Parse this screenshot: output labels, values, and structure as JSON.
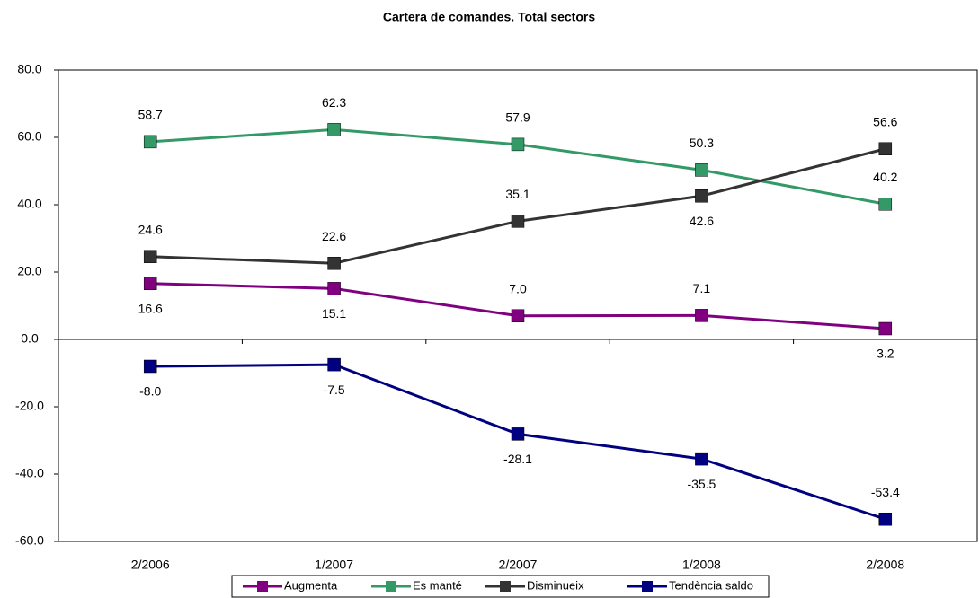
{
  "chart_data": {
    "type": "line",
    "title": "Cartera de comandes. Total sectors",
    "categories": [
      "2/2006",
      "1/2007",
      "2/2007",
      "1/2008",
      "2/2008"
    ],
    "series": [
      {
        "name": "Augmenta",
        "color": "#800080",
        "values": [
          16.6,
          15.1,
          7.0,
          7.1,
          3.2
        ],
        "value_labels": [
          "16.6",
          "15.1",
          "7.0",
          "7.1",
          "3.2"
        ]
      },
      {
        "name": "Es manté",
        "color": "#339966",
        "values": [
          58.7,
          62.3,
          57.9,
          50.3,
          40.2
        ],
        "value_labels": [
          "58.7",
          "62.3",
          "57.9",
          "50.3",
          "40.2"
        ]
      },
      {
        "name": "Disminueix",
        "color": "#333333",
        "values": [
          24.6,
          22.6,
          35.1,
          42.6,
          56.6
        ],
        "value_labels": [
          "24.6",
          "22.6",
          "35.1",
          "42.6",
          "56.6"
        ]
      },
      {
        "name": "Tendència saldo",
        "color": "#000080",
        "values": [
          -8.0,
          -7.5,
          -28.1,
          -35.5,
          -53.4
        ],
        "value_labels": [
          "-8.0",
          "-7.5",
          "-28.1",
          "-35.5",
          "-53.4"
        ]
      }
    ],
    "ylim": [
      -60,
      80
    ],
    "yticks": [
      {
        "value": -60,
        "label": "-60.0"
      },
      {
        "value": -40,
        "label": "-40.0"
      },
      {
        "value": -20,
        "label": "-20.0"
      },
      {
        "value": 0,
        "label": "0.0"
      },
      {
        "value": 20,
        "label": "20.0"
      },
      {
        "value": 40,
        "label": "40.0"
      },
      {
        "value": 60,
        "label": "60.0"
      },
      {
        "value": 80,
        "label": "80.0"
      }
    ],
    "legend": "bottom"
  }
}
